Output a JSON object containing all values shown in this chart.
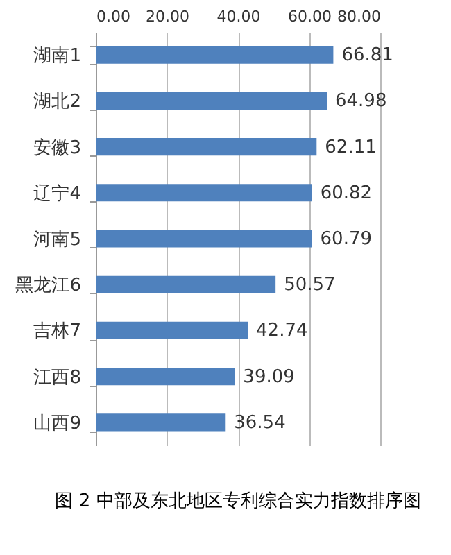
{
  "chart_data": {
    "type": "bar",
    "orientation": "horizontal",
    "title": "图 2  中部及东北地区专利综合实力指数排序图",
    "categories": [
      "湖南1",
      "湖北2",
      "安徽3",
      "辽宁4",
      "河南5",
      "黑龙江6",
      "吉林7",
      "江西8",
      "山西9"
    ],
    "values": [
      66.81,
      64.98,
      62.11,
      60.82,
      60.79,
      50.57,
      42.74,
      39.09,
      36.54
    ],
    "color": "#4f81bd",
    "xlim": [
      0,
      80
    ],
    "xticks": [
      {
        "value": 0,
        "label": "0.00"
      },
      {
        "value": 20,
        "label": "20.00"
      },
      {
        "value": 40,
        "label": "40.00"
      },
      {
        "value": 60,
        "label": "60.00"
      },
      {
        "value": 80,
        "label": "80.00"
      }
    ],
    "grid": "x",
    "data_labels": true
  }
}
